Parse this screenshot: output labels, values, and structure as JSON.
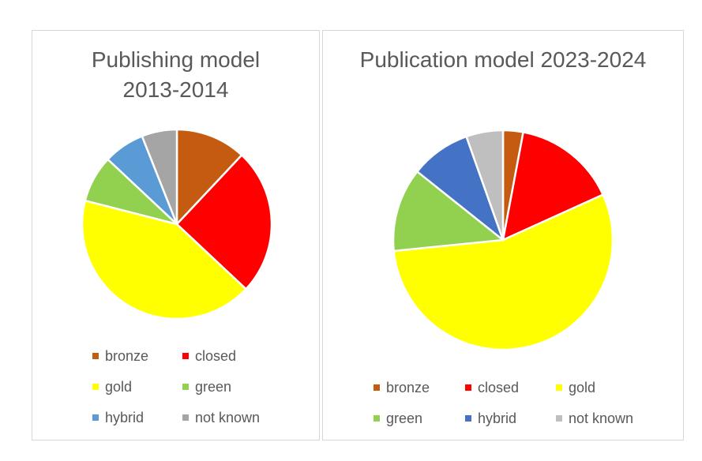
{
  "chart_data": [
    {
      "type": "pie",
      "title": "Publishing model 2013-2014",
      "categories": [
        "bronze",
        "closed",
        "gold",
        "green",
        "hybrid",
        "not known"
      ],
      "values": [
        12,
        25,
        42,
        8,
        7,
        6
      ],
      "colors": [
        "#C55A11",
        "#FF0000",
        "#FFFF00",
        "#92D050",
        "#5B9BD5",
        "#A5A5A5"
      ],
      "legend_position": "bottom"
    },
    {
      "type": "pie",
      "title": "Publication model 2023-2024",
      "categories": [
        "bronze",
        "closed",
        "gold",
        "green",
        "hybrid",
        "not known"
      ],
      "values": [
        3,
        15.5,
        56,
        12.5,
        9,
        5.5
      ],
      "colors": [
        "#C55A11",
        "#FF0000",
        "#FFFF00",
        "#92D050",
        "#4472C4",
        "#BFBFBF"
      ],
      "legend_position": "bottom"
    }
  ]
}
